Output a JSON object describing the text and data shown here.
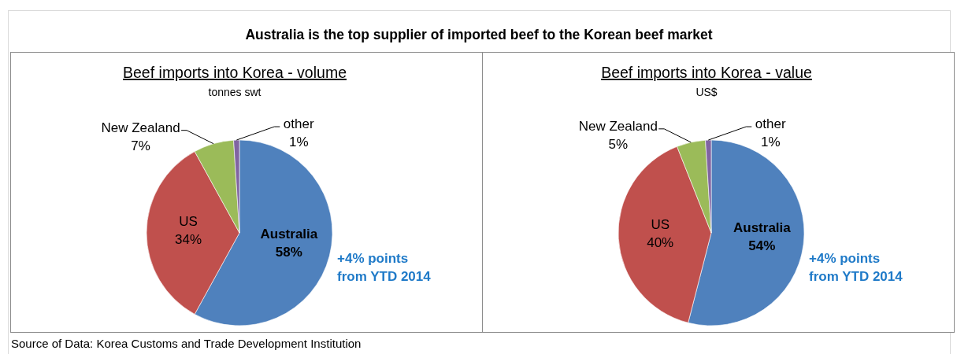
{
  "chart_data": [
    {
      "type": "other",
      "title": "Australia is the top supplier of imported beef to the Korean beef market",
      "annotations": [
        "Source of Data: Korea Customs and Trade Development Institution"
      ]
    },
    {
      "type": "pie",
      "title": "Beef imports into Korea - volume",
      "subtitle": "tonnes swt",
      "categories": [
        "Australia",
        "US",
        "New Zealand",
        "other"
      ],
      "values": [
        58,
        34,
        7,
        1
      ],
      "value_labels": [
        "58%",
        "34%",
        "7%",
        "1%"
      ],
      "colors": [
        "#4f81bd",
        "#c0504d",
        "#9bbb59",
        "#8064a2"
      ],
      "annotations": [
        "+4% points from YTD 2014"
      ]
    },
    {
      "type": "pie",
      "title": "Beef imports into Korea - value",
      "subtitle": "US$",
      "categories": [
        "Australia",
        "US",
        "New Zealand",
        "other"
      ],
      "values": [
        54,
        40,
        5,
        1
      ],
      "value_labels": [
        "54%",
        "40%",
        "5%",
        "1%"
      ],
      "colors": [
        "#4f81bd",
        "#c0504d",
        "#9bbb59",
        "#8064a2"
      ],
      "annotations": [
        "+4% points from YTD 2014"
      ]
    }
  ]
}
